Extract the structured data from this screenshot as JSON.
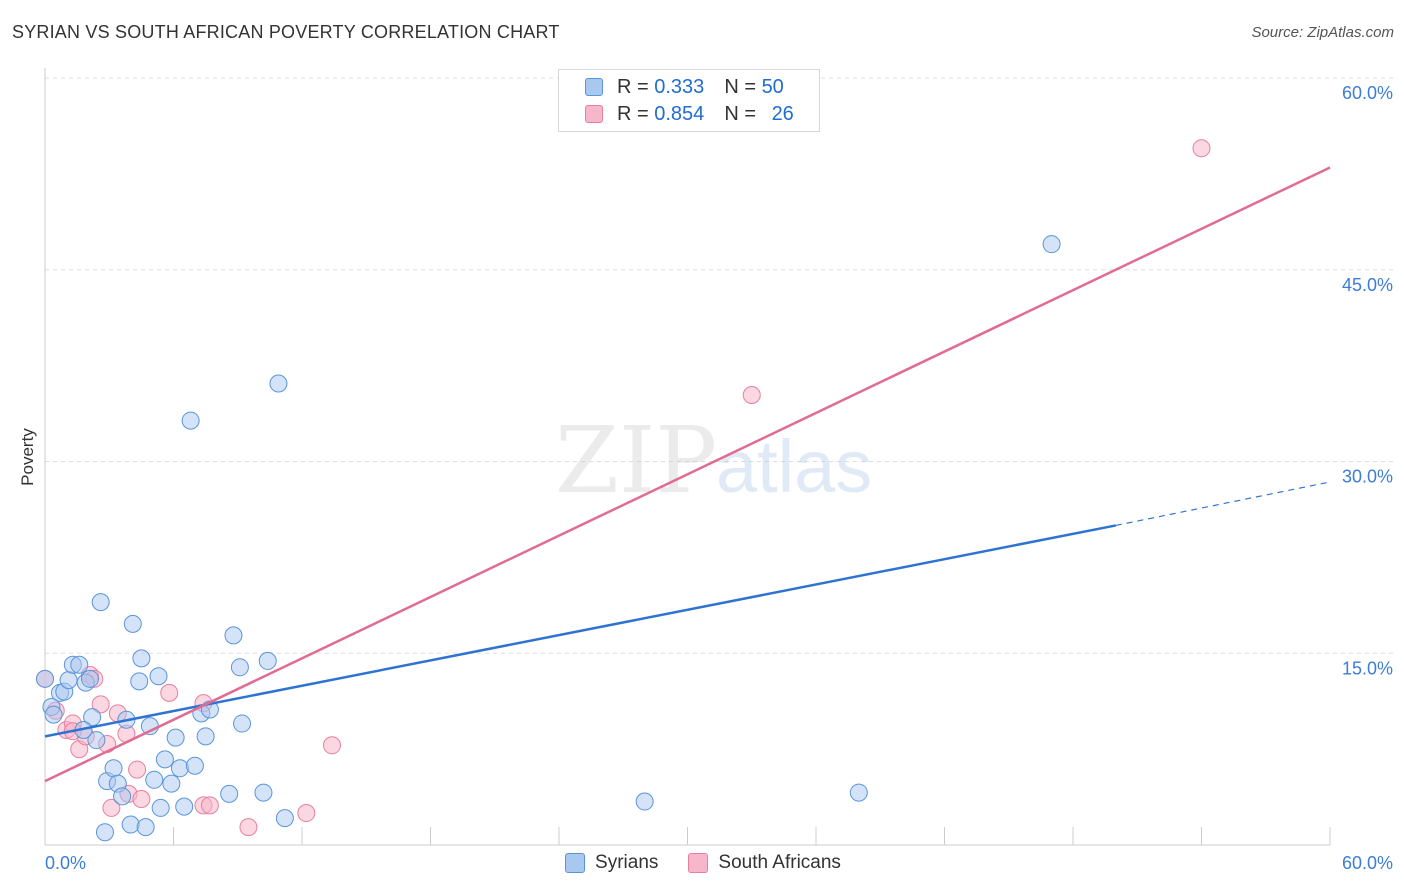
{
  "header": {
    "title": "SYRIAN VS SOUTH AFRICAN POVERTY CORRELATION CHART",
    "source": "Source: ZipAtlas.com"
  },
  "watermark": {
    "zip": "ZIP",
    "atlas": "atlas"
  },
  "legend": {
    "rows": [
      {
        "r_label": "R =",
        "r_value": "0.333",
        "n_label": "N =",
        "n_value": "50"
      },
      {
        "r_label": "R =",
        "r_value": "0.854",
        "n_label": "N =",
        "n_value": "26"
      }
    ]
  },
  "colors": {
    "syrians_fill": "#a9c8f0",
    "syrians_stroke": "#5a95dc",
    "syrians_line": "#2f73d2",
    "sa_fill": "#f7b7cb",
    "sa_stroke": "#e87fa0",
    "sa_line": "#e06b93",
    "axis_label": "#3b7dd8",
    "grid": "#dddddd"
  },
  "chart_data": {
    "type": "scatter",
    "title": "SYRIAN VS SOUTH AFRICAN POVERTY CORRELATION CHART",
    "xlabel": "",
    "ylabel": "Poverty",
    "xlim": [
      0,
      60
    ],
    "ylim": [
      0,
      60
    ],
    "x_tick_labels": [
      "0.0%",
      "60.0%"
    ],
    "y_tick_labels": [
      "15.0%",
      "30.0%",
      "45.0%",
      "60.0%"
    ],
    "y_ticks": [
      15,
      30,
      45,
      60
    ],
    "grid": true,
    "legend_position": "top-center",
    "series": [
      {
        "name": "Syrians",
        "r": 0.333,
        "n": 50,
        "trend": {
          "x0": 0,
          "y0": 8.5,
          "x1": 50,
          "y1": 25.0,
          "dashed_to_x": 60,
          "dashed_to_y": 28.4
        },
        "points": [
          [
            0.0,
            13.0
          ],
          [
            0.3,
            10.8
          ],
          [
            0.4,
            10.2
          ],
          [
            0.7,
            11.9
          ],
          [
            0.9,
            12.0
          ],
          [
            1.1,
            12.9
          ],
          [
            1.3,
            14.1
          ],
          [
            1.6,
            14.1
          ],
          [
            1.9,
            12.7
          ],
          [
            2.1,
            13.0
          ],
          [
            2.2,
            10.0
          ],
          [
            2.4,
            8.2
          ],
          [
            2.6,
            19.0
          ],
          [
            2.8,
            1.0
          ],
          [
            2.9,
            5.0
          ],
          [
            3.2,
            6.0
          ],
          [
            3.4,
            4.8
          ],
          [
            3.6,
            3.8
          ],
          [
            3.8,
            9.8
          ],
          [
            4.0,
            1.6
          ],
          [
            4.1,
            17.3
          ],
          [
            4.4,
            12.8
          ],
          [
            4.5,
            14.6
          ],
          [
            4.7,
            1.4
          ],
          [
            4.9,
            9.3
          ],
          [
            5.1,
            5.1
          ],
          [
            5.3,
            13.2
          ],
          [
            5.4,
            2.9
          ],
          [
            5.6,
            6.7
          ],
          [
            5.9,
            4.8
          ],
          [
            6.1,
            8.4
          ],
          [
            6.3,
            6.0
          ],
          [
            6.5,
            3.0
          ],
          [
            6.8,
            33.2
          ],
          [
            7.0,
            6.2
          ],
          [
            7.3,
            10.3
          ],
          [
            7.5,
            8.5
          ],
          [
            7.7,
            10.6
          ],
          [
            8.6,
            4.0
          ],
          [
            8.8,
            16.4
          ],
          [
            9.1,
            13.9
          ],
          [
            9.2,
            9.5
          ],
          [
            10.2,
            4.1
          ],
          [
            10.4,
            14.4
          ],
          [
            11.2,
            2.1
          ],
          [
            10.9,
            36.1
          ],
          [
            28.0,
            3.4
          ],
          [
            38.0,
            4.1
          ],
          [
            47.0,
            47.0
          ],
          [
            1.8,
            9.0
          ]
        ]
      },
      {
        "name": "South Africans",
        "r": 0.854,
        "n": 26,
        "trend": {
          "x0": 0,
          "y0": 5.0,
          "x1": 60,
          "y1": 53.0
        },
        "points": [
          [
            0.0,
            13.0
          ],
          [
            0.5,
            10.5
          ],
          [
            1.0,
            9.0
          ],
          [
            1.3,
            9.5
          ],
          [
            1.6,
            7.5
          ],
          [
            1.9,
            8.5
          ],
          [
            2.1,
            13.3
          ],
          [
            2.3,
            13.0
          ],
          [
            2.6,
            11.0
          ],
          [
            2.9,
            7.9
          ],
          [
            3.1,
            2.9
          ],
          [
            3.4,
            10.3
          ],
          [
            3.8,
            8.7
          ],
          [
            3.9,
            4.0
          ],
          [
            4.3,
            5.9
          ],
          [
            4.5,
            3.6
          ],
          [
            5.8,
            11.9
          ],
          [
            7.4,
            3.1
          ],
          [
            7.4,
            11.1
          ],
          [
            7.7,
            3.1
          ],
          [
            9.5,
            1.4
          ],
          [
            12.2,
            2.5
          ],
          [
            13.4,
            7.8
          ],
          [
            33.0,
            35.2
          ],
          [
            54.0,
            54.5
          ],
          [
            1.3,
            8.9
          ]
        ]
      }
    ]
  },
  "bottom_legend": {
    "syrians": "Syrians",
    "south_africans": "South Africans"
  }
}
